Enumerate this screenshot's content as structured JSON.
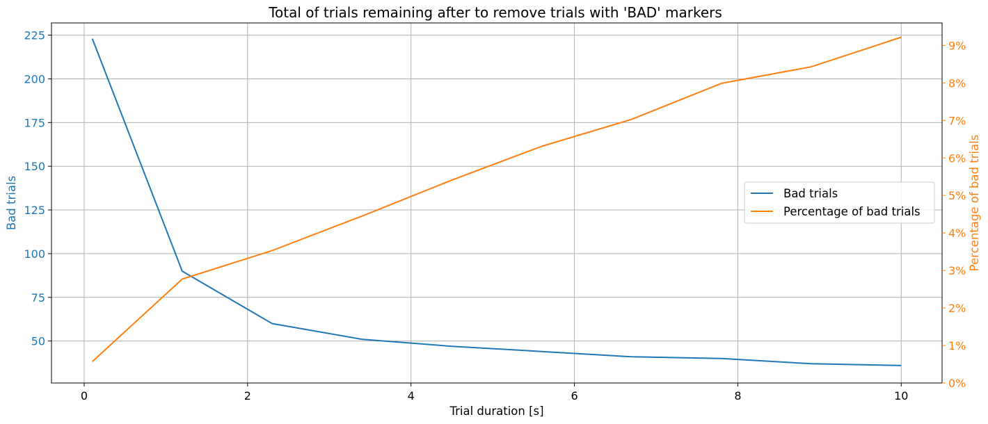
{
  "colors": {
    "series_bad": "#1f77b4",
    "series_pct": "#ff7f0e",
    "grid": "#b0b0b0",
    "axis": "#000000"
  },
  "chart_data": {
    "type": "line",
    "title": "Total of trials remaining after to remove trials with 'BAD' markers",
    "xlabel": "Trial duration [s]",
    "ylabel_left": "Bad trials",
    "ylabel_right": "Percentage of bad trials",
    "xlim": [
      -0.4,
      10.5
    ],
    "ylim_left": [
      26,
      232
    ],
    "ylim_right": [
      0,
      9.6
    ],
    "grid": true,
    "legend_position": "center-right",
    "x_ticks": [
      {
        "value": 0,
        "label": "0"
      },
      {
        "value": 2,
        "label": "2"
      },
      {
        "value": 4,
        "label": "4"
      },
      {
        "value": 6,
        "label": "6"
      },
      {
        "value": 8,
        "label": "8"
      },
      {
        "value": 10,
        "label": "10"
      }
    ],
    "y_left_ticks": [
      {
        "value": 50,
        "label": "50"
      },
      {
        "value": 75,
        "label": "75"
      },
      {
        "value": 100,
        "label": "100"
      },
      {
        "value": 125,
        "label": "125"
      },
      {
        "value": 150,
        "label": "150"
      },
      {
        "value": 175,
        "label": "175"
      },
      {
        "value": 200,
        "label": "200"
      },
      {
        "value": 225,
        "label": "225"
      }
    ],
    "y_right_ticks": [
      {
        "value": 0,
        "label": "0%"
      },
      {
        "value": 1,
        "label": "1%"
      },
      {
        "value": 2,
        "label": "2%"
      },
      {
        "value": 3,
        "label": "3%"
      },
      {
        "value": 4,
        "label": "4%"
      },
      {
        "value": 5,
        "label": "5%"
      },
      {
        "value": 6,
        "label": "6%"
      },
      {
        "value": 7,
        "label": "7%"
      },
      {
        "value": 8,
        "label": "8%"
      },
      {
        "value": 9,
        "label": "9%"
      }
    ],
    "x": [
      0.1,
      1.2,
      2.3,
      3.4,
      4.5,
      5.6,
      6.7,
      7.8,
      8.9,
      10.0
    ],
    "series": [
      {
        "name": "Bad trials",
        "axis": "left",
        "values": [
          223,
          90,
          60,
          51,
          47,
          44,
          41,
          40,
          37,
          36
        ]
      },
      {
        "name": "Percentage of bad trials",
        "axis": "right",
        "values": [
          0.57,
          2.77,
          3.53,
          4.45,
          5.41,
          6.31,
          7.03,
          7.99,
          8.43,
          9.22
        ]
      }
    ]
  }
}
